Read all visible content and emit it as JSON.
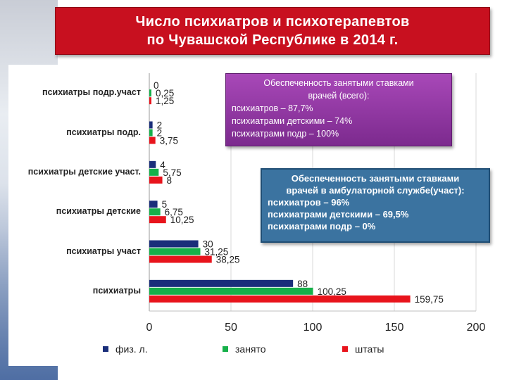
{
  "title": {
    "line1": "Число психиатров и психотерапевтов",
    "line2": "по Чувашской Республике в 2014 г."
  },
  "colors": {
    "title_bg": "#c8101f",
    "series_phys": "#1a2e7a",
    "series_occupied": "#16b04a",
    "series_staff": "#e8141c",
    "box_purple": "#8a35a0",
    "box_blue": "#3b73a0"
  },
  "chart_data": {
    "type": "bar",
    "orientation": "horizontal",
    "categories": [
      "психиатры подр.участ",
      "психиатры подр.",
      "психиатры детские участ.",
      "психиатры детские",
      "психиатры участ",
      "психиатры"
    ],
    "series": [
      {
        "name": "физ. л.",
        "values": [
          0,
          2,
          4,
          5,
          30,
          88
        ],
        "labels": [
          "0",
          "2",
          "4",
          "5",
          "30",
          "88"
        ]
      },
      {
        "name": "занято",
        "values": [
          0.25,
          2,
          5.75,
          6.75,
          31.25,
          100.25
        ],
        "labels": [
          "0,25",
          "2",
          "5,75",
          "6,75",
          "31,25",
          "100,25"
        ]
      },
      {
        "name": "штаты",
        "values": [
          1.25,
          3.75,
          8,
          10.25,
          38.25,
          159.75
        ],
        "labels": [
          "1,25",
          "3,75",
          "8",
          "10,25",
          "38,25",
          "159,75"
        ]
      }
    ],
    "xlim": [
      0,
      200
    ],
    "xticks": [
      "0",
      "50",
      "100",
      "150",
      "200"
    ],
    "grid": true,
    "legend_position": "bottom"
  },
  "annotations": {
    "box1": {
      "header1": "Обеспеченность занятыми ставками",
      "header2": "врачей (всего):",
      "l1": "психиатров – 87,7%",
      "l2": "психиатрами детскими – 74%",
      "l3": "психиатрами подр – 100%"
    },
    "box2": {
      "header1": "Обеспеченность занятыми ставками",
      "header2": "врачей в амбулаторной службе(участ):",
      "l1": "психиатров – 96%",
      "l2": "психиатрами детскими – 69,5%",
      "l3": "психиатрами подр – 0%"
    }
  }
}
